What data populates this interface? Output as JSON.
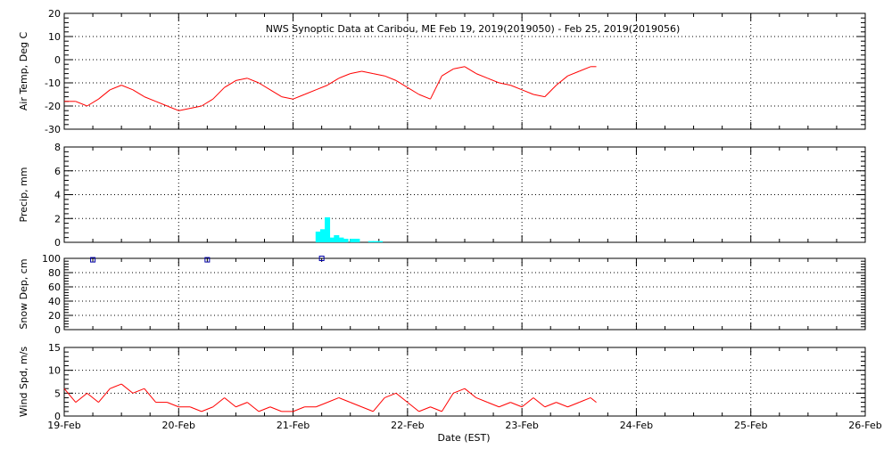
{
  "title": "NWS Synoptic Data at Caribou, ME    Feb 19, 2019(2019050) - Feb 25, 2019(2019056)",
  "xlabel": "Date (EST)",
  "x_ticks": [
    "19-Feb",
    "20-Feb",
    "21-Feb",
    "22-Feb",
    "23-Feb",
    "24-Feb",
    "25-Feb",
    "26-Feb"
  ],
  "colors": {
    "line": "#ff0000",
    "precip": "#00ffff",
    "snow": "#0000aa",
    "axis": "#000000"
  },
  "chart_data": [
    {
      "type": "line",
      "ylabel": "Air Temp, Deg C",
      "ylim": [
        -30,
        20
      ],
      "yticks": [
        20,
        10,
        0,
        -10,
        -20,
        -30
      ],
      "grid": true,
      "x": [
        0.0,
        0.1,
        0.2,
        0.3,
        0.4,
        0.5,
        0.6,
        0.7,
        0.8,
        0.9,
        1.0,
        1.1,
        1.2,
        1.3,
        1.4,
        1.5,
        1.6,
        1.7,
        1.8,
        1.9,
        2.0,
        2.1,
        2.2,
        2.3,
        2.4,
        2.5,
        2.6,
        2.7,
        2.8,
        2.9,
        3.0,
        3.1,
        3.2,
        3.3,
        3.4,
        3.5,
        3.6,
        3.7,
        3.8,
        3.9,
        4.0,
        4.1,
        4.2,
        4.3,
        4.4,
        4.5,
        4.6,
        4.65
      ],
      "values": [
        -18,
        -18,
        -20,
        -17,
        -13,
        -11,
        -13,
        -16,
        -18,
        -20,
        -22,
        -21,
        -20,
        -17,
        -12,
        -9,
        -8,
        -10,
        -13,
        -16,
        -17,
        -15,
        -13,
        -11,
        -8,
        -6,
        -5,
        -6,
        -7,
        -9,
        -12,
        -15,
        -17,
        -7,
        -4,
        -3,
        -6,
        -8,
        -10,
        -11,
        -13,
        -15,
        -16,
        -11,
        -7,
        -5,
        -3,
        -3
      ]
    },
    {
      "type": "bar",
      "ylabel": "Precip, mm",
      "ylim": [
        0,
        8
      ],
      "yticks": [
        8,
        6,
        4,
        2,
        0
      ],
      "grid": true,
      "x": [
        2.22,
        2.26,
        2.3,
        2.34,
        2.38,
        2.42,
        2.46,
        2.52,
        2.56,
        2.68,
        2.72,
        2.76
      ],
      "values": [
        0.9,
        1.1,
        2.1,
        0.4,
        0.6,
        0.4,
        0.3,
        0.3,
        0.3,
        0.1,
        0.1,
        0.1
      ]
    },
    {
      "type": "scatter",
      "ylabel": "Snow Dep, cm",
      "ylim": [
        0,
        100
      ],
      "yticks": [
        100,
        80,
        60,
        40,
        20,
        0
      ],
      "grid": true,
      "x": [
        0.25,
        1.25,
        2.25
      ],
      "values": [
        98,
        98,
        100
      ]
    },
    {
      "type": "line",
      "ylabel": "Wind Spd, m/s",
      "ylim": [
        0,
        15
      ],
      "yticks": [
        15,
        10,
        5,
        0
      ],
      "grid": true,
      "x": [
        0.0,
        0.1,
        0.2,
        0.3,
        0.4,
        0.5,
        0.6,
        0.7,
        0.8,
        0.9,
        1.0,
        1.1,
        1.2,
        1.3,
        1.4,
        1.5,
        1.6,
        1.7,
        1.8,
        1.9,
        2.0,
        2.1,
        2.2,
        2.3,
        2.4,
        2.5,
        2.6,
        2.7,
        2.8,
        2.9,
        3.0,
        3.1,
        3.2,
        3.3,
        3.4,
        3.5,
        3.6,
        3.7,
        3.8,
        3.9,
        4.0,
        4.1,
        4.2,
        4.3,
        4.4,
        4.5,
        4.6,
        4.65
      ],
      "values": [
        6,
        3,
        5,
        3,
        6,
        7,
        5,
        6,
        3,
        3,
        2,
        2,
        1,
        2,
        4,
        2,
        3,
        1,
        2,
        1,
        1,
        2,
        2,
        3,
        4,
        3,
        2,
        1,
        4,
        5,
        3,
        1,
        2,
        1,
        5,
        6,
        4,
        3,
        2,
        3,
        2,
        4,
        2,
        3,
        2,
        3,
        4,
        3
      ]
    }
  ]
}
